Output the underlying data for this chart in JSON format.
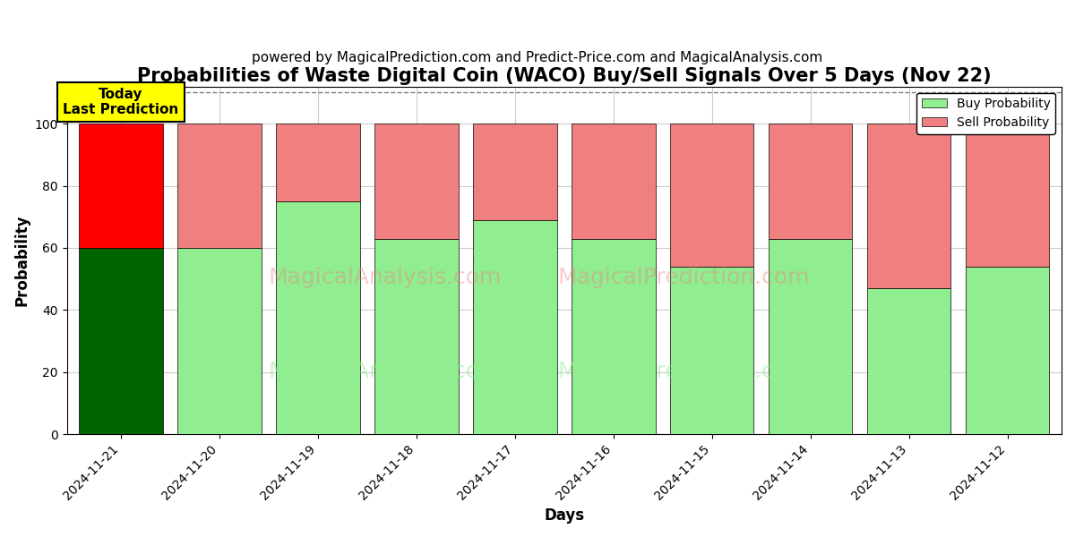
{
  "title": "Probabilities of Waste Digital Coin (WACO) Buy/Sell Signals Over 5 Days (Nov 22)",
  "subtitle": "powered by MagicalPrediction.com and Predict-Price.com and MagicalAnalysis.com",
  "xlabel": "Days",
  "ylabel": "Probability",
  "dates": [
    "2024-11-21",
    "2024-11-20",
    "2024-11-19",
    "2024-11-18",
    "2024-11-17",
    "2024-11-16",
    "2024-11-15",
    "2024-11-14",
    "2024-11-13",
    "2024-11-12"
  ],
  "buy_values": [
    60,
    60,
    75,
    63,
    69,
    63,
    54,
    63,
    47,
    54
  ],
  "sell_values": [
    40,
    40,
    25,
    37,
    31,
    37,
    46,
    37,
    53,
    46
  ],
  "today_buy_color": "#006400",
  "today_sell_color": "#FF0000",
  "buy_color": "#90EE90",
  "sell_color": "#F08080",
  "today_annotation": "Today\nLast Prediction",
  "today_annotation_bg": "#FFFF00",
  "ylim": [
    0,
    112
  ],
  "yticks": [
    0,
    20,
    40,
    60,
    80,
    100
  ],
  "dashed_line_y": 110,
  "watermark_left": "MagicalAnalysis.com",
  "watermark_right": "MagicalPrediction.com",
  "legend_buy_label": "Buy Probability",
  "legend_sell_label": "Sell Probability",
  "bg_color": "#ffffff",
  "grid_color": "#cccccc",
  "title_fontsize": 15,
  "subtitle_fontsize": 11,
  "bar_width": 0.85
}
